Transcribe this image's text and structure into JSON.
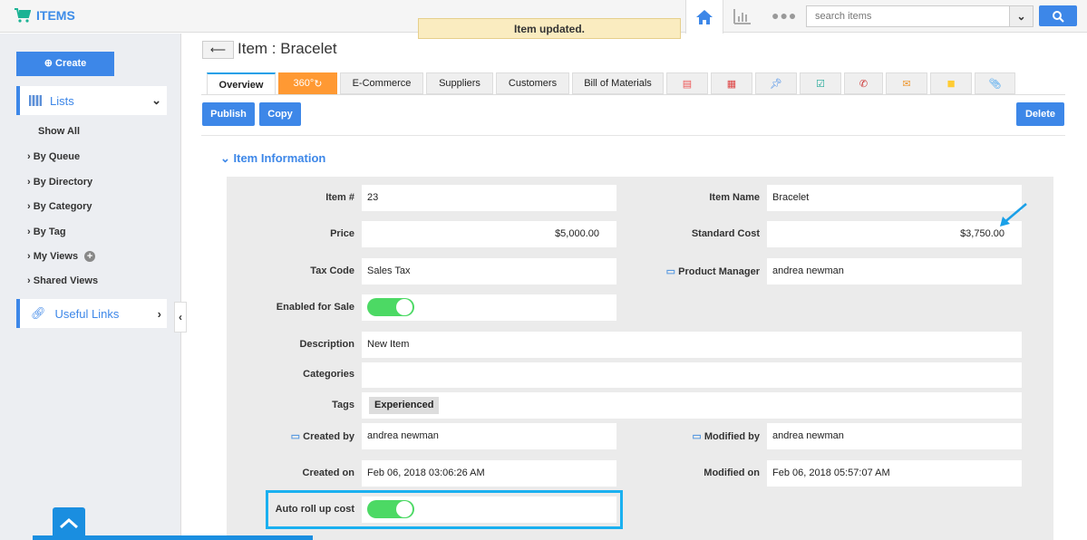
{
  "app": {
    "title": "ITEMS",
    "toast": "Item updated."
  },
  "header": {
    "search_placeholder": "search items"
  },
  "sidebar": {
    "create": "Create",
    "lists": "Lists",
    "items": [
      "Show All",
      "By Queue",
      "By Directory",
      "By Category",
      "By Tag",
      "My Views",
      "Shared Views"
    ],
    "useful_links": "Useful Links"
  },
  "page": {
    "title": "Item : Bracelet"
  },
  "tabs": [
    "Overview",
    "360°",
    "E-Commerce",
    "Suppliers",
    "Customers",
    "Bill of Materials"
  ],
  "icon_tabs": [
    "invoice-icon",
    "calendar-icon",
    "pin-icon",
    "task-icon",
    "call-icon",
    "email-icon",
    "note-icon",
    "attachment-icon"
  ],
  "actions": {
    "publish": "Publish",
    "copy": "Copy",
    "delete": "Delete"
  },
  "section": "Item Information",
  "fields": {
    "item_no": {
      "label": "Item #",
      "value": "23"
    },
    "item_name": {
      "label": "Item Name",
      "value": "Bracelet"
    },
    "price": {
      "label": "Price",
      "value": "$5,000.00"
    },
    "standard_cost": {
      "label": "Standard Cost",
      "value": "$3,750.00"
    },
    "tax_code": {
      "label": "Tax Code",
      "value": "Sales Tax"
    },
    "product_manager": {
      "label": "Product Manager",
      "value": "andrea newman"
    },
    "enabled_for_sale": {
      "label": "Enabled for Sale",
      "value": true
    },
    "description": {
      "label": "Description",
      "value": "New Item"
    },
    "categories": {
      "label": "Categories",
      "value": ""
    },
    "tags": {
      "label": "Tags",
      "value": "Experienced"
    },
    "created_by": {
      "label": "Created by",
      "value": "andrea newman"
    },
    "modified_by": {
      "label": "Modified by",
      "value": "andrea newman"
    },
    "created_on": {
      "label": "Created on",
      "value": "Feb 06, 2018 03:06:26 AM"
    },
    "modified_on": {
      "label": "Modified on",
      "value": "Feb 06, 2018 05:57:07 AM"
    },
    "auto_roll_up_cost": {
      "label": "Auto roll up cost",
      "value": true
    }
  },
  "colors": {
    "accent": "#3d87e8",
    "highlight": "#1ab0f0",
    "toggle_on": "#4cd964",
    "tab_360": "#ff9933"
  }
}
